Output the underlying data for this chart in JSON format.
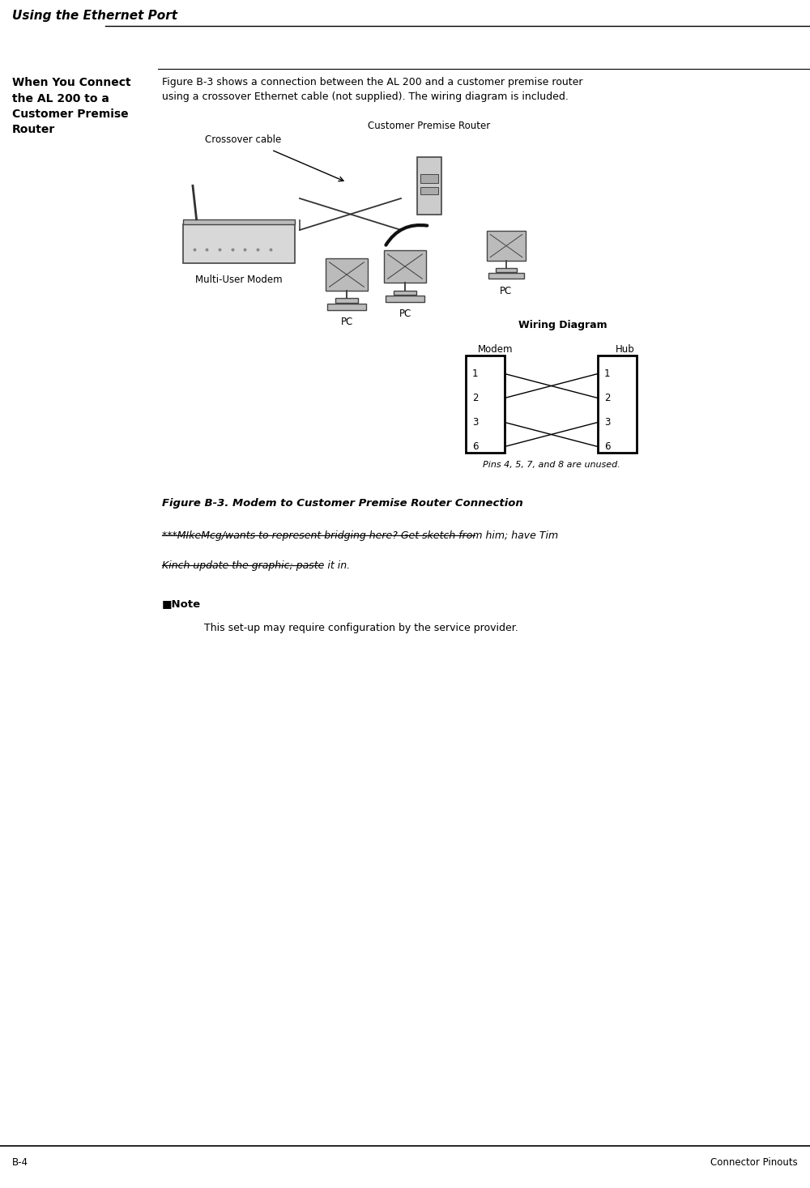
{
  "page_title": "Using the Ethernet Port",
  "section_title": "When You Connect\nthe AL 200 to a\nCustomer Premise\nRouter",
  "intro_text": "Figure B-3 shows a connection between the AL 200 and a customer premise router\nusing a crossover Ethernet cable (not supplied). The wiring diagram is included.",
  "crossover_label": "Crossover cable",
  "customer_premise_label": "Customer Premise Router",
  "multi_user_modem_label": "Multi-User Modem",
  "pc_label": "PC",
  "wiring_title": "Wiring Diagram",
  "modem_label": "Modem",
  "hub_label": "Hub",
  "pins_note": "Pins 4, 5, 7, and 8 are unused.",
  "figure_caption": "Figure B-3. Modem to Customer Premise Router Connection",
  "note_marker": "■Note",
  "note_text": "This set-up may require configuration by the service provider.",
  "annotation_text_line1": "***MIkeMcg/wants to represent bridging here? Get sketch from him; have Tim",
  "annotation_text_line2": "Kinch update the graphic; paste it in.",
  "footer_left": "B-4",
  "footer_right": "Connector Pinouts",
  "wiring_pins_left": [
    "1",
    "2",
    "3",
    "6"
  ],
  "wiring_pins_right": [
    "1",
    "2",
    "3",
    "6"
  ],
  "bg_color": "#ffffff",
  "text_color": "#000000",
  "line_color": "#000000"
}
